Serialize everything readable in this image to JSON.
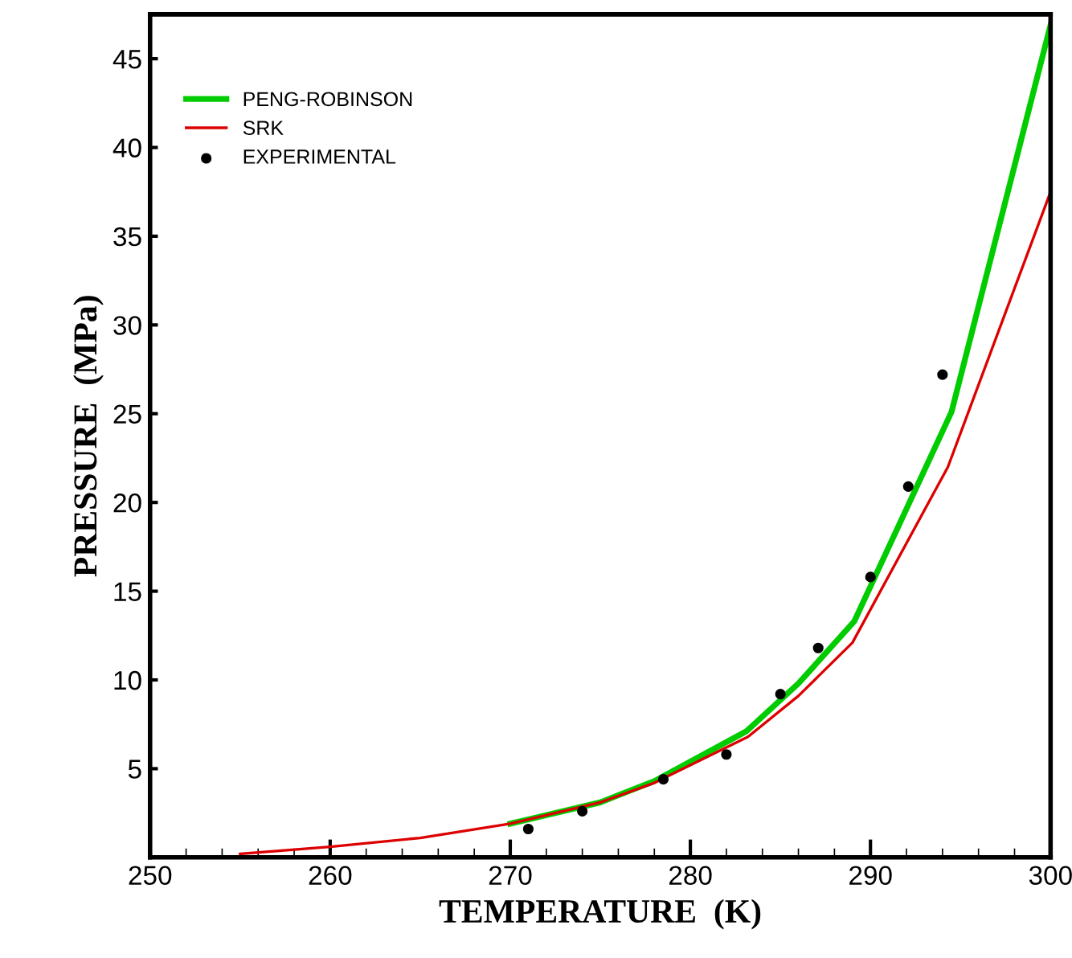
{
  "chart_data": {
    "type": "line",
    "xlabel": "TEMPERATURE  (K)",
    "ylabel": "PRESSURE  (MPa)",
    "xlim": [
      250,
      300
    ],
    "ylim": [
      0,
      47.5
    ],
    "xticks": [
      250,
      260,
      270,
      280,
      290,
      300
    ],
    "yticks": [
      5,
      10,
      15,
      20,
      25,
      30,
      35,
      40,
      45
    ],
    "grid": false,
    "legend": "top left",
    "marker": "none",
    "line_style": "solid",
    "series": [
      {
        "name": "PENG-ROBINSON",
        "color": "#00cc00",
        "x": [
          270,
          275,
          278,
          283.1,
          286,
          289.1,
          294.5,
          300
        ],
        "values": [
          1.9,
          3.1,
          4.3,
          7.1,
          9.8,
          13.3,
          25.1,
          46.9
        ]
      },
      {
        "name": "SRK",
        "color": "#dd0000",
        "x": [
          255,
          260,
          265,
          270,
          275,
          278,
          283.2,
          286,
          289,
          294.3,
          300
        ],
        "values": [
          0.2,
          0.6,
          1.1,
          1.9,
          3.1,
          4.2,
          6.8,
          9.1,
          12.1,
          22,
          37.5
        ]
      },
      {
        "name": "EXPERIMENTAL",
        "type": "scatter",
        "marker": "circle",
        "color": "#000000",
        "x": [
          271.0,
          274.0,
          278.5,
          282.0,
          285.0,
          287.1,
          290.0,
          292.1,
          294.0
        ],
        "values": [
          1.6,
          2.6,
          4.4,
          5.8,
          9.2,
          11.8,
          15.8,
          20.9,
          27.2
        ]
      }
    ]
  }
}
